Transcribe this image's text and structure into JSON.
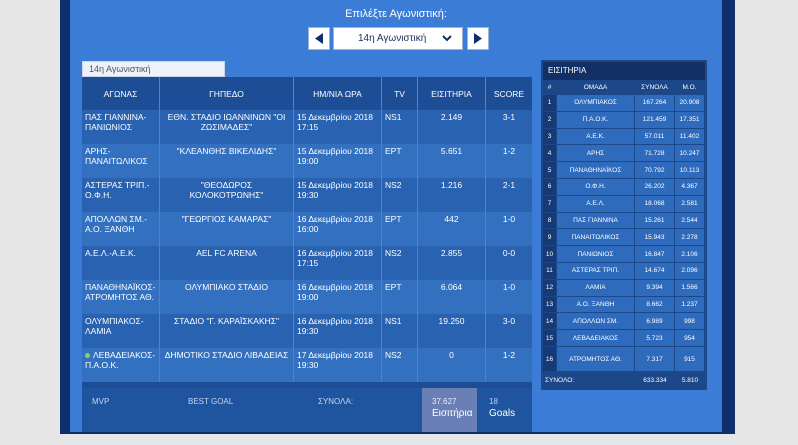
{
  "header": {
    "prompt": "Επιλέξτε Αγωνιστική:"
  },
  "selector": {
    "label": "14η Αγωνιστική"
  },
  "tab": "14η Αγωνιστική",
  "matches": {
    "columns": [
      "ΑΓΩΝΑΣ",
      "ΓΗΠΕΔΟ",
      "ΗΜ/ΝΙΑ ΩΡΑ",
      "TV",
      "ΕΙΣΙΤΗΡΙΑ",
      "SCORE"
    ],
    "rows": [
      {
        "match": "ΠΑΣ ΓΙΑΝΝΙΝΑ-ΠΑΝΙΩΝΙΟΣ",
        "stadium": "ΕΘΝ. ΣΤΑΔΙΟ ΙΩΑΝΝΙΝΩΝ \"ΟΙ ΖΩΣΙΜΑΔΕΣ\"",
        "date": "15 Δεκεμβρίου 2018",
        "time": "17:15",
        "tv": "NS1",
        "tickets": "2.149",
        "score": "3-1"
      },
      {
        "match": "ΑΡΗΣ-ΠΑΝΑΙΤΩΛΙΚΟΣ",
        "stadium": "\"ΚΛΕΑΝΘΗΣ ΒΙΚΕΛΙΔΗΣ\"",
        "date": "15 Δεκεμβρίου 2018",
        "time": "19:00",
        "tv": "ΕΡΤ",
        "tickets": "5.651",
        "score": "1-2"
      },
      {
        "match": "ΑΣΤΕΡΑΣ ΤΡΙΠ.-Ο.Φ.Η.",
        "stadium": "\"ΘΕΟΔΩΡΟΣ ΚΟΛΟΚΟΤΡΩΝΗΣ\"",
        "date": "15 Δεκεμβρίου 2018",
        "time": "19:30",
        "tv": "NS2",
        "tickets": "1.216",
        "score": "2-1"
      },
      {
        "match": "ΑΠΟΛΛΩΝ ΣΜ.-Α.Ο. ΞΑΝΘΗ",
        "stadium": "\"ΓΕΩΡΓΙΟΣ ΚΑΜΑΡΑΣ\"",
        "date": "16 Δεκεμβρίου 2018",
        "time": "16:00",
        "tv": "ΕΡΤ",
        "tickets": "442",
        "score": "1-0"
      },
      {
        "match": "Α.Ε.Λ.-Α.Ε.Κ.",
        "stadium": "AEL FC ARENA",
        "date": "16 Δεκεμβρίου 2018",
        "time": "17:15",
        "tv": "NS2",
        "tickets": "2.855",
        "score": "0-0"
      },
      {
        "match": "ΠΑΝΑΘΗΝΑΪΚΟΣ-ΑΤΡΟΜΗΤΟΣ ΑΘ.",
        "stadium": "ΟΛΥΜΠΙΑΚΟ ΣΤΑΔΙΟ",
        "date": "16 Δεκεμβρίου 2018",
        "time": "19:00",
        "tv": "ΕΡΤ",
        "tickets": "6.064",
        "score": "1-0"
      },
      {
        "match": "ΟΛΥΜΠΙΑΚΟΣ-ΛΑΜΙΑ",
        "stadium": "ΣΤΑΔΙΟ \"Γ. ΚΑΡΑΪΣΚΑΚΗΣ\"",
        "date": "16 Δεκεμβρίου 2018",
        "time": "19:30",
        "tv": "NS1",
        "tickets": "19.250",
        "score": "3-0"
      },
      {
        "match": "ΛΕΒΑΔΕΙΑΚΟΣ-Π.Α.Ο.Κ.",
        "stadium": "ΔΗΜΟΤΙΚΟ ΣΤΑΔΙΟ ΛΙΒΑΔΕΙΑΣ",
        "date": "17 Δεκεμβρίου 2018",
        "time": "19:30",
        "tv": "NS2",
        "tickets": "0",
        "score": "1-2"
      }
    ],
    "footer": {
      "mvp": "MVP",
      "best_goal": "BEST GOAL",
      "totals_label": "ΣΥΝΟΛΑ:",
      "tickets_total": "37.627",
      "tickets_label": "Εισιτήρια",
      "goals_total": "18",
      "goals_label": "Goals"
    }
  },
  "attendance": {
    "title": "ΕΙΣΙΤΗΡΙΑ",
    "columns": [
      "#",
      "ΟΜΑΔΑ",
      "ΣΥΝΟΛΑ",
      "Μ.Ο."
    ],
    "rows": [
      [
        "1",
        "ΟΛΥΜΠΙΑΚΟΣ",
        "167.264",
        "20.908"
      ],
      [
        "2",
        "Π.Α.Ο.Κ.",
        "121.459",
        "17.351"
      ],
      [
        "3",
        "Α.Ε.Κ.",
        "57.011",
        "11.402"
      ],
      [
        "4",
        "ΑΡΗΣ",
        "71.728",
        "10.247"
      ],
      [
        "5",
        "ΠΑΝΑΘΗΝΑΪΚΟΣ",
        "70.792",
        "10.113"
      ],
      [
        "6",
        "Ο.Φ.Η.",
        "26.202",
        "4.367"
      ],
      [
        "7",
        "Α.Ε.Λ.",
        "18.068",
        "2.581"
      ],
      [
        "8",
        "ΠΑΣ ΓΙΑΝΝΙΝΑ",
        "15.261",
        "2.544"
      ],
      [
        "9",
        "ΠΑΝΑΙΤΩΛΙΚΟΣ",
        "15.943",
        "2.278"
      ],
      [
        "10",
        "ΠΑΝΙΩΝΙΟΣ",
        "16.847",
        "2.106"
      ],
      [
        "11",
        "ΑΣΤΕΡΑΣ ΤΡΙΠ.",
        "14.674",
        "2.096"
      ],
      [
        "12",
        "ΛΑΜΙΑ",
        "9.394",
        "1.566"
      ],
      [
        "13",
        "Α.Ο. ΞΑΝΘΗ",
        "8.662",
        "1.237"
      ],
      [
        "14",
        "ΑΠΟΛΛΩΝ ΣΜ.",
        "6.989",
        "998"
      ],
      [
        "15",
        "ΛΕΒΑΔΕΙΑΚΟΣ",
        "5.723",
        "954"
      ],
      [
        "16",
        "ΑΤΡΟΜΗΤΟΣ ΑΘ.",
        "7.317",
        "915"
      ]
    ],
    "total": {
      "label": "ΣΥΝΟΛΟ:",
      "sum": "633.334",
      "avg": "5.810"
    }
  }
}
